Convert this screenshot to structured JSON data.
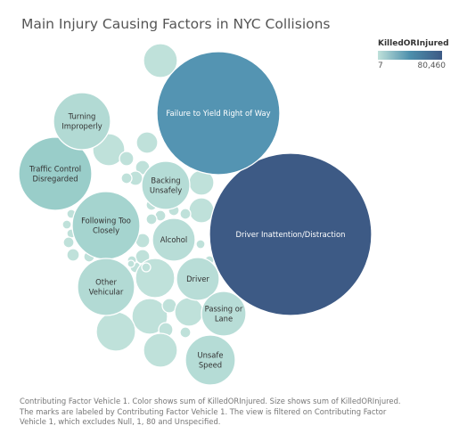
{
  "title": "Main Injury Causing Factors in NYC Collisions",
  "legend": {
    "title": "KilledORInjured",
    "min_label": "7",
    "max_label": "80,460",
    "color_low": "#bfe1da",
    "color_mid": "#4d8fac",
    "color_high": "#3d5a85"
  },
  "caption": {
    "line1": "Contributing Factor Vehicle 1.  Color shows sum of KilledORInjured.  Size shows sum of KilledORInjured.",
    "line2": "The marks are labeled by Contributing Factor Vehicle 1. The view is filtered on Contributing Factor",
    "line3": "Vehicle 1, which excludes Null, 1, 80 and Unspecified."
  },
  "chart_data": {
    "type": "packed-bubble",
    "size_measure": "sum of KilledORInjured",
    "color_measure": "sum of KilledORInjured",
    "color_range": [
      7,
      80460
    ],
    "labeled_bubbles": [
      {
        "label": "Driver Inattention/Distraction",
        "lines": [
          "Driver Inattention/Distraction"
        ]
      },
      {
        "label": "Failure to Yield Right of Way",
        "lines": [
          "Failure to Yield Right of Way"
        ]
      },
      {
        "label": "Traffic Control Disregarded",
        "lines": [
          "Traffic Control",
          "Disregarded"
        ]
      },
      {
        "label": "Following Too Closely",
        "lines": [
          "Following Too",
          "Closely"
        ]
      },
      {
        "label": "Turning Improperly",
        "lines": [
          "Turning",
          "Improperly"
        ]
      },
      {
        "label": "Backing Unsafely",
        "lines": [
          "Backing",
          "Unsafely"
        ]
      },
      {
        "label": "Other Vehicular",
        "lines": [
          "Other",
          "Vehicular"
        ]
      },
      {
        "label": "Alcohol",
        "lines": [
          "Alcohol"
        ]
      },
      {
        "label": "Driver",
        "lines": [
          "Driver"
        ]
      },
      {
        "label": "Passing or Lane",
        "lines": [
          "Passing or",
          "Lane"
        ]
      },
      {
        "label": "Unsafe Speed",
        "lines": [
          "Unsafe",
          "Speed"
        ]
      }
    ]
  }
}
